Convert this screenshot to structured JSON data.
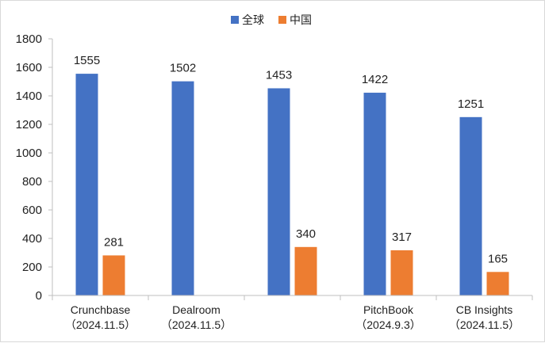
{
  "chart_data": {
    "type": "bar",
    "categories": [
      [
        "Crunchbase",
        "（2024.11.5）"
      ],
      [
        "Dealroom",
        "（2024.11.5）"
      ],
      [
        "",
        ""
      ],
      [
        "PitchBook",
        "（2024.9.3）"
      ],
      [
        "CB Insights",
        "（2024.11.5）"
      ]
    ],
    "series": [
      {
        "name": "全球",
        "color": "#4472c4",
        "values": [
          1555,
          1502,
          1453,
          1422,
          1251
        ]
      },
      {
        "name": "中国",
        "color": "#ed7d31",
        "values": [
          281,
          null,
          340,
          317,
          165
        ]
      }
    ],
    "yticks": [
      0,
      200,
      400,
      600,
      800,
      1000,
      1200,
      1400,
      1600,
      1800
    ],
    "ylim": [
      0,
      1800
    ],
    "legend_position": "top-center",
    "grid": false,
    "data_labels": true
  }
}
